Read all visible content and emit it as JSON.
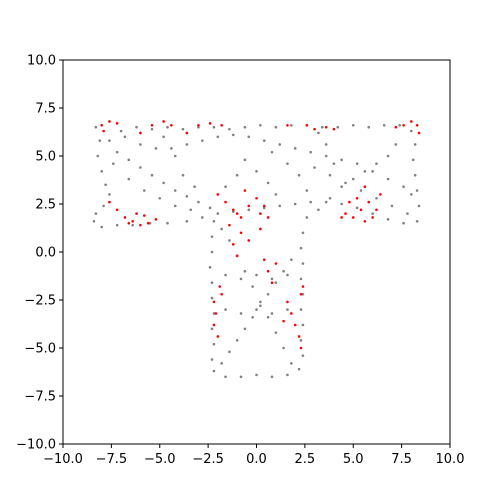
{
  "chart_data": {
    "type": "scatter",
    "title": "",
    "xlabel": "",
    "ylabel": "",
    "xlim": [
      -10,
      10
    ],
    "ylim": [
      -10,
      10
    ],
    "grid": false,
    "legend": "none",
    "x_ticks": [
      "−10.0",
      "−7.5",
      "−5.0",
      "−2.5",
      "0.0",
      "2.5",
      "5.0",
      "7.5",
      "10.0"
    ],
    "y_ticks": [
      "10.0",
      "7.5",
      "5.0",
      "2.5",
      "0.0",
      "−2.5",
      "−5.0",
      "−7.5",
      "−10.0"
    ],
    "x_tick_values": [
      -10,
      -7.5,
      -5,
      -2.5,
      0,
      2.5,
      5,
      7.5,
      10
    ],
    "y_tick_values": [
      10,
      7.5,
      5,
      2.5,
      0,
      -2.5,
      -5,
      -7.5,
      -10
    ],
    "region": {
      "shape": "T",
      "top_bar": {
        "x": [
          -8.5,
          8.5
        ],
        "y": [
          1.3,
          6.8
        ]
      },
      "stem": {
        "x": [
          -2.5,
          2.5
        ],
        "y": [
          -6.6,
          1.3
        ]
      }
    },
    "series": [
      {
        "color": "#808080",
        "marker": "dot",
        "points": [
          [
            -8.3,
            6.5
          ],
          [
            -8.1,
            5.8
          ],
          [
            -8.2,
            5.0
          ],
          [
            -8.0,
            4.2
          ],
          [
            -7.8,
            3.5
          ],
          [
            -7.6,
            3.0
          ],
          [
            -7.9,
            2.4
          ],
          [
            -8.3,
            2.0
          ],
          [
            -8.4,
            1.6
          ],
          [
            -8.0,
            1.3
          ],
          [
            -7.2,
            1.4
          ],
          [
            -6.4,
            1.4
          ],
          [
            -5.5,
            1.5
          ],
          [
            -4.6,
            1.5
          ],
          [
            -3.6,
            1.6
          ],
          [
            -2.8,
            1.8
          ],
          [
            -2.0,
            2.0
          ],
          [
            -1.2,
            2.1
          ],
          [
            -0.4,
            2.2
          ],
          [
            0.4,
            2.3
          ],
          [
            1.2,
            2.4
          ],
          [
            2.0,
            2.5
          ],
          [
            2.8,
            2.6
          ],
          [
            3.6,
            2.6
          ],
          [
            4.4,
            2.5
          ],
          [
            5.2,
            2.3
          ],
          [
            6.0,
            2.0
          ],
          [
            6.8,
            1.7
          ],
          [
            7.6,
            1.5
          ],
          [
            8.3,
            1.6
          ],
          [
            8.4,
            2.4
          ],
          [
            8.3,
            3.2
          ],
          [
            8.2,
            4.0
          ],
          [
            8.1,
            4.8
          ],
          [
            8.2,
            5.6
          ],
          [
            8.0,
            6.3
          ],
          [
            7.4,
            6.6
          ],
          [
            6.6,
            6.6
          ],
          [
            5.8,
            6.5
          ],
          [
            5.0,
            6.6
          ],
          [
            4.2,
            6.5
          ],
          [
            3.4,
            6.5
          ],
          [
            2.6,
            6.6
          ],
          [
            1.8,
            6.6
          ],
          [
            1.0,
            6.5
          ],
          [
            0.2,
            6.6
          ],
          [
            -0.6,
            6.5
          ],
          [
            -1.4,
            6.4
          ],
          [
            -2.2,
            6.5
          ],
          [
            -3.0,
            6.5
          ],
          [
            -3.8,
            6.4
          ],
          [
            -4.6,
            6.5
          ],
          [
            -5.4,
            6.4
          ],
          [
            -6.2,
            6.5
          ],
          [
            -7.0,
            6.3
          ],
          [
            -7.6,
            5.8
          ],
          [
            -7.2,
            5.2
          ],
          [
            -6.6,
            4.8
          ],
          [
            -6.0,
            4.4
          ],
          [
            -5.4,
            4.0
          ],
          [
            -4.8,
            3.6
          ],
          [
            -4.2,
            3.2
          ],
          [
            -3.6,
            2.9
          ],
          [
            -3.0,
            2.6
          ],
          [
            -2.4,
            2.3
          ],
          [
            -2.2,
            1.6
          ],
          [
            -2.3,
            0.8
          ],
          [
            -2.3,
            0.0
          ],
          [
            -2.4,
            -0.8
          ],
          [
            -2.3,
            -1.6
          ],
          [
            -2.3,
            -2.4
          ],
          [
            -2.2,
            -3.2
          ],
          [
            -2.3,
            -4.0
          ],
          [
            -2.2,
            -4.8
          ],
          [
            -2.3,
            -5.6
          ],
          [
            -2.2,
            -6.2
          ],
          [
            -1.6,
            -6.5
          ],
          [
            -0.8,
            -6.5
          ],
          [
            0.0,
            -6.4
          ],
          [
            0.8,
            -6.5
          ],
          [
            1.6,
            -6.4
          ],
          [
            2.2,
            -6.1
          ],
          [
            2.4,
            -5.4
          ],
          [
            2.3,
            -4.6
          ],
          [
            2.4,
            -3.8
          ],
          [
            2.3,
            -3.0
          ],
          [
            2.4,
            -2.2
          ],
          [
            2.3,
            -1.4
          ],
          [
            2.4,
            -0.6
          ],
          [
            2.3,
            0.2
          ],
          [
            2.4,
            1.0
          ],
          [
            2.6,
            1.8
          ],
          [
            3.2,
            2.2
          ],
          [
            3.8,
            2.8
          ],
          [
            4.4,
            3.4
          ],
          [
            5.0,
            3.8
          ],
          [
            5.6,
            4.2
          ],
          [
            6.2,
            4.6
          ],
          [
            6.8,
            5.0
          ],
          [
            7.2,
            5.6
          ],
          [
            -6.8,
            6.0
          ],
          [
            -6.0,
            5.6
          ],
          [
            -5.2,
            5.4
          ],
          [
            -4.4,
            5.4
          ],
          [
            -3.6,
            5.6
          ],
          [
            -2.8,
            5.8
          ],
          [
            -2.0,
            6.0
          ],
          [
            -1.2,
            6.1
          ],
          [
            -0.4,
            6.0
          ],
          [
            0.4,
            5.8
          ],
          [
            1.2,
            5.6
          ],
          [
            2.0,
            5.4
          ],
          [
            2.8,
            5.2
          ],
          [
            3.6,
            5.0
          ],
          [
            4.4,
            4.8
          ],
          [
            5.2,
            4.6
          ],
          [
            6.0,
            4.2
          ],
          [
            6.8,
            3.8
          ],
          [
            7.6,
            3.4
          ],
          [
            8.0,
            3.0
          ],
          [
            -1.8,
            -5.8
          ],
          [
            -1.4,
            -5.2
          ],
          [
            -1.0,
            -4.6
          ],
          [
            -0.6,
            -4.0
          ],
          [
            -0.2,
            -3.4
          ],
          [
            0.2,
            -2.8
          ],
          [
            0.6,
            -2.2
          ],
          [
            1.0,
            -1.6
          ],
          [
            1.4,
            -1.0
          ],
          [
            1.8,
            -0.4
          ],
          [
            1.8,
            -5.8
          ],
          [
            1.4,
            -5.0
          ],
          [
            1.0,
            -4.2
          ],
          [
            0.6,
            -3.4
          ],
          [
            0.2,
            -2.6
          ],
          [
            -0.2,
            -1.8
          ],
          [
            -0.6,
            -1.0
          ],
          [
            -1.0,
            -0.2
          ],
          [
            -1.4,
            0.6
          ],
          [
            -1.8,
            1.2
          ],
          [
            -1.6,
            -3.0
          ],
          [
            -0.8,
            -3.2
          ],
          [
            0.0,
            -3.0
          ],
          [
            0.8,
            -3.2
          ],
          [
            1.6,
            -3.0
          ],
          [
            -1.6,
            -1.2
          ],
          [
            -0.8,
            -1.4
          ],
          [
            0.0,
            -1.2
          ],
          [
            0.8,
            -1.4
          ],
          [
            1.6,
            -1.2
          ],
          [
            -7.4,
            4.6
          ],
          [
            -6.6,
            3.8
          ],
          [
            -5.8,
            3.2
          ],
          [
            -5.0,
            2.8
          ],
          [
            -4.2,
            2.4
          ],
          [
            -3.4,
            2.2
          ],
          [
            3.0,
            4.4
          ],
          [
            3.8,
            4.0
          ],
          [
            4.6,
            3.6
          ],
          [
            5.4,
            3.2
          ],
          [
            6.2,
            2.8
          ],
          [
            7.0,
            2.4
          ],
          [
            7.8,
            2.0
          ],
          [
            -4.8,
            6.0
          ],
          [
            -4.2,
            5.0
          ],
          [
            -3.8,
            4.0
          ],
          [
            -3.2,
            3.4
          ],
          [
            3.2,
            6.2
          ],
          [
            3.6,
            5.6
          ],
          [
            4.0,
            4.6
          ],
          [
            -0.6,
            4.8
          ],
          [
            0.0,
            4.2
          ],
          [
            0.6,
            3.6
          ],
          [
            1.0,
            3.0
          ],
          [
            -1.0,
            4.0
          ],
          [
            -1.6,
            3.4
          ],
          [
            0.8,
            5.2
          ],
          [
            1.6,
            4.6
          ],
          [
            2.2,
            4.0
          ],
          [
            2.6,
            3.2
          ]
        ]
      },
      {
        "color": "#ff0000",
        "marker": "dot",
        "points": [
          [
            -8.0,
            6.6
          ],
          [
            -7.6,
            6.8
          ],
          [
            -7.2,
            6.7
          ],
          [
            -7.9,
            6.3
          ],
          [
            -7.6,
            2.6
          ],
          [
            -7.2,
            2.2
          ],
          [
            -6.8,
            1.8
          ],
          [
            -6.4,
            1.6
          ],
          [
            -6.0,
            1.4
          ],
          [
            -5.6,
            1.5
          ],
          [
            -5.2,
            1.7
          ],
          [
            -6.2,
            2.0
          ],
          [
            -6.6,
            1.5
          ],
          [
            -5.8,
            1.9
          ],
          [
            -6.0,
            6.2
          ],
          [
            -5.4,
            6.6
          ],
          [
            -4.8,
            6.8
          ],
          [
            -4.4,
            6.6
          ],
          [
            -3.6,
            6.2
          ],
          [
            -3.0,
            6.6
          ],
          [
            -2.4,
            6.7
          ],
          [
            -1.8,
            6.6
          ],
          [
            -2.0,
            3.0
          ],
          [
            -1.6,
            2.6
          ],
          [
            -1.2,
            2.2
          ],
          [
            -0.8,
            1.8
          ],
          [
            -0.4,
            2.4
          ],
          [
            0.0,
            2.8
          ],
          [
            0.4,
            2.4
          ],
          [
            -0.6,
            3.2
          ],
          [
            -1.0,
            2.0
          ],
          [
            0.2,
            2.0
          ],
          [
            -1.4,
            1.4
          ],
          [
            -0.8,
            1.0
          ],
          [
            -1.2,
            0.4
          ],
          [
            -1.0,
            -0.2
          ],
          [
            -0.4,
            0.6
          ],
          [
            0.2,
            1.2
          ],
          [
            0.6,
            1.8
          ],
          [
            -2.2,
            -2.6
          ],
          [
            -2.1,
            -3.2
          ],
          [
            -2.2,
            -3.8
          ],
          [
            -2.0,
            -4.4
          ],
          [
            -1.9,
            -1.8
          ],
          [
            -1.8,
            -2.2
          ],
          [
            1.6,
            -2.6
          ],
          [
            1.8,
            -3.2
          ],
          [
            2.0,
            -3.8
          ],
          [
            2.2,
            -4.4
          ],
          [
            2.3,
            -5.0
          ],
          [
            2.4,
            -1.8
          ],
          [
            2.3,
            -2.2
          ],
          [
            1.4,
            -3.6
          ],
          [
            0.4,
            -0.4
          ],
          [
            0.6,
            -1.0
          ],
          [
            0.8,
            -1.6
          ],
          [
            1.0,
            -0.6
          ],
          [
            2.6,
            6.6
          ],
          [
            3.0,
            6.4
          ],
          [
            3.6,
            6.5
          ],
          [
            4.0,
            6.4
          ],
          [
            1.6,
            6.6
          ],
          [
            4.6,
            2.0
          ],
          [
            5.0,
            1.8
          ],
          [
            5.4,
            2.2
          ],
          [
            5.8,
            2.6
          ],
          [
            6.2,
            2.2
          ],
          [
            5.6,
            1.6
          ],
          [
            4.8,
            2.6
          ],
          [
            6.0,
            1.8
          ],
          [
            5.2,
            2.8
          ],
          [
            5.6,
            3.4
          ],
          [
            6.4,
            3.0
          ],
          [
            4.4,
            1.8
          ],
          [
            7.6,
            6.6
          ],
          [
            8.0,
            6.8
          ],
          [
            8.3,
            6.6
          ],
          [
            8.4,
            6.2
          ],
          [
            7.2,
            6.5
          ]
        ]
      }
    ]
  }
}
